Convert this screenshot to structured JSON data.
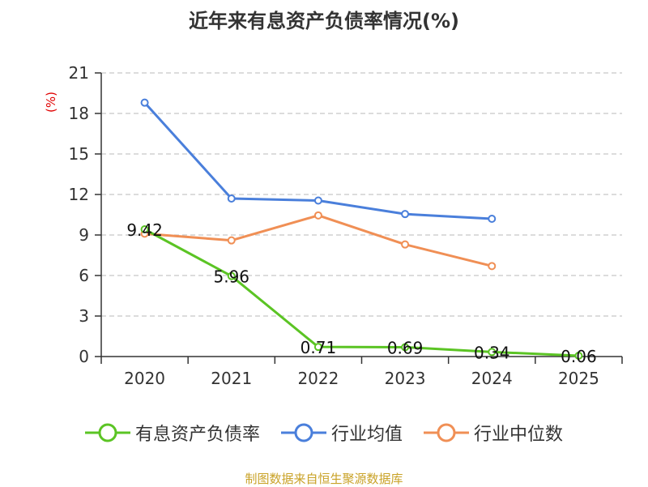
{
  "colors": {
    "axis": "#333333",
    "grid": "#c8c8c8",
    "unit": "#e00000",
    "source": "#c9a227"
  },
  "chart_data": {
    "type": "line",
    "title": "近年来有息资产负债率情况(%)",
    "ylabel": "(%)",
    "xlabel": "",
    "categories": [
      "2020",
      "2021",
      "2022",
      "2023",
      "2024",
      "2025"
    ],
    "ylim": [
      0,
      21
    ],
    "yticks": [
      0,
      3,
      6,
      9,
      12,
      15,
      18,
      21
    ],
    "grid": true,
    "legend_position": "bottom",
    "series": [
      {
        "name": "有息资产负债率",
        "color": "#5bc424",
        "values": [
          9.42,
          5.96,
          0.71,
          0.69,
          0.34,
          0.06
        ],
        "labels": [
          "9.42",
          "5.96",
          "0.71",
          "0.69",
          "0.34",
          "0.06"
        ]
      },
      {
        "name": "行业均值",
        "color": "#4a7fdb",
        "values": [
          18.8,
          11.7,
          11.55,
          10.55,
          10.2,
          null
        ]
      },
      {
        "name": "行业中位数",
        "color": "#f08f55",
        "values": [
          9.1,
          8.6,
          10.45,
          8.3,
          6.7,
          null
        ]
      }
    ]
  },
  "source_note": "制图数据来自恒生聚源数据库"
}
